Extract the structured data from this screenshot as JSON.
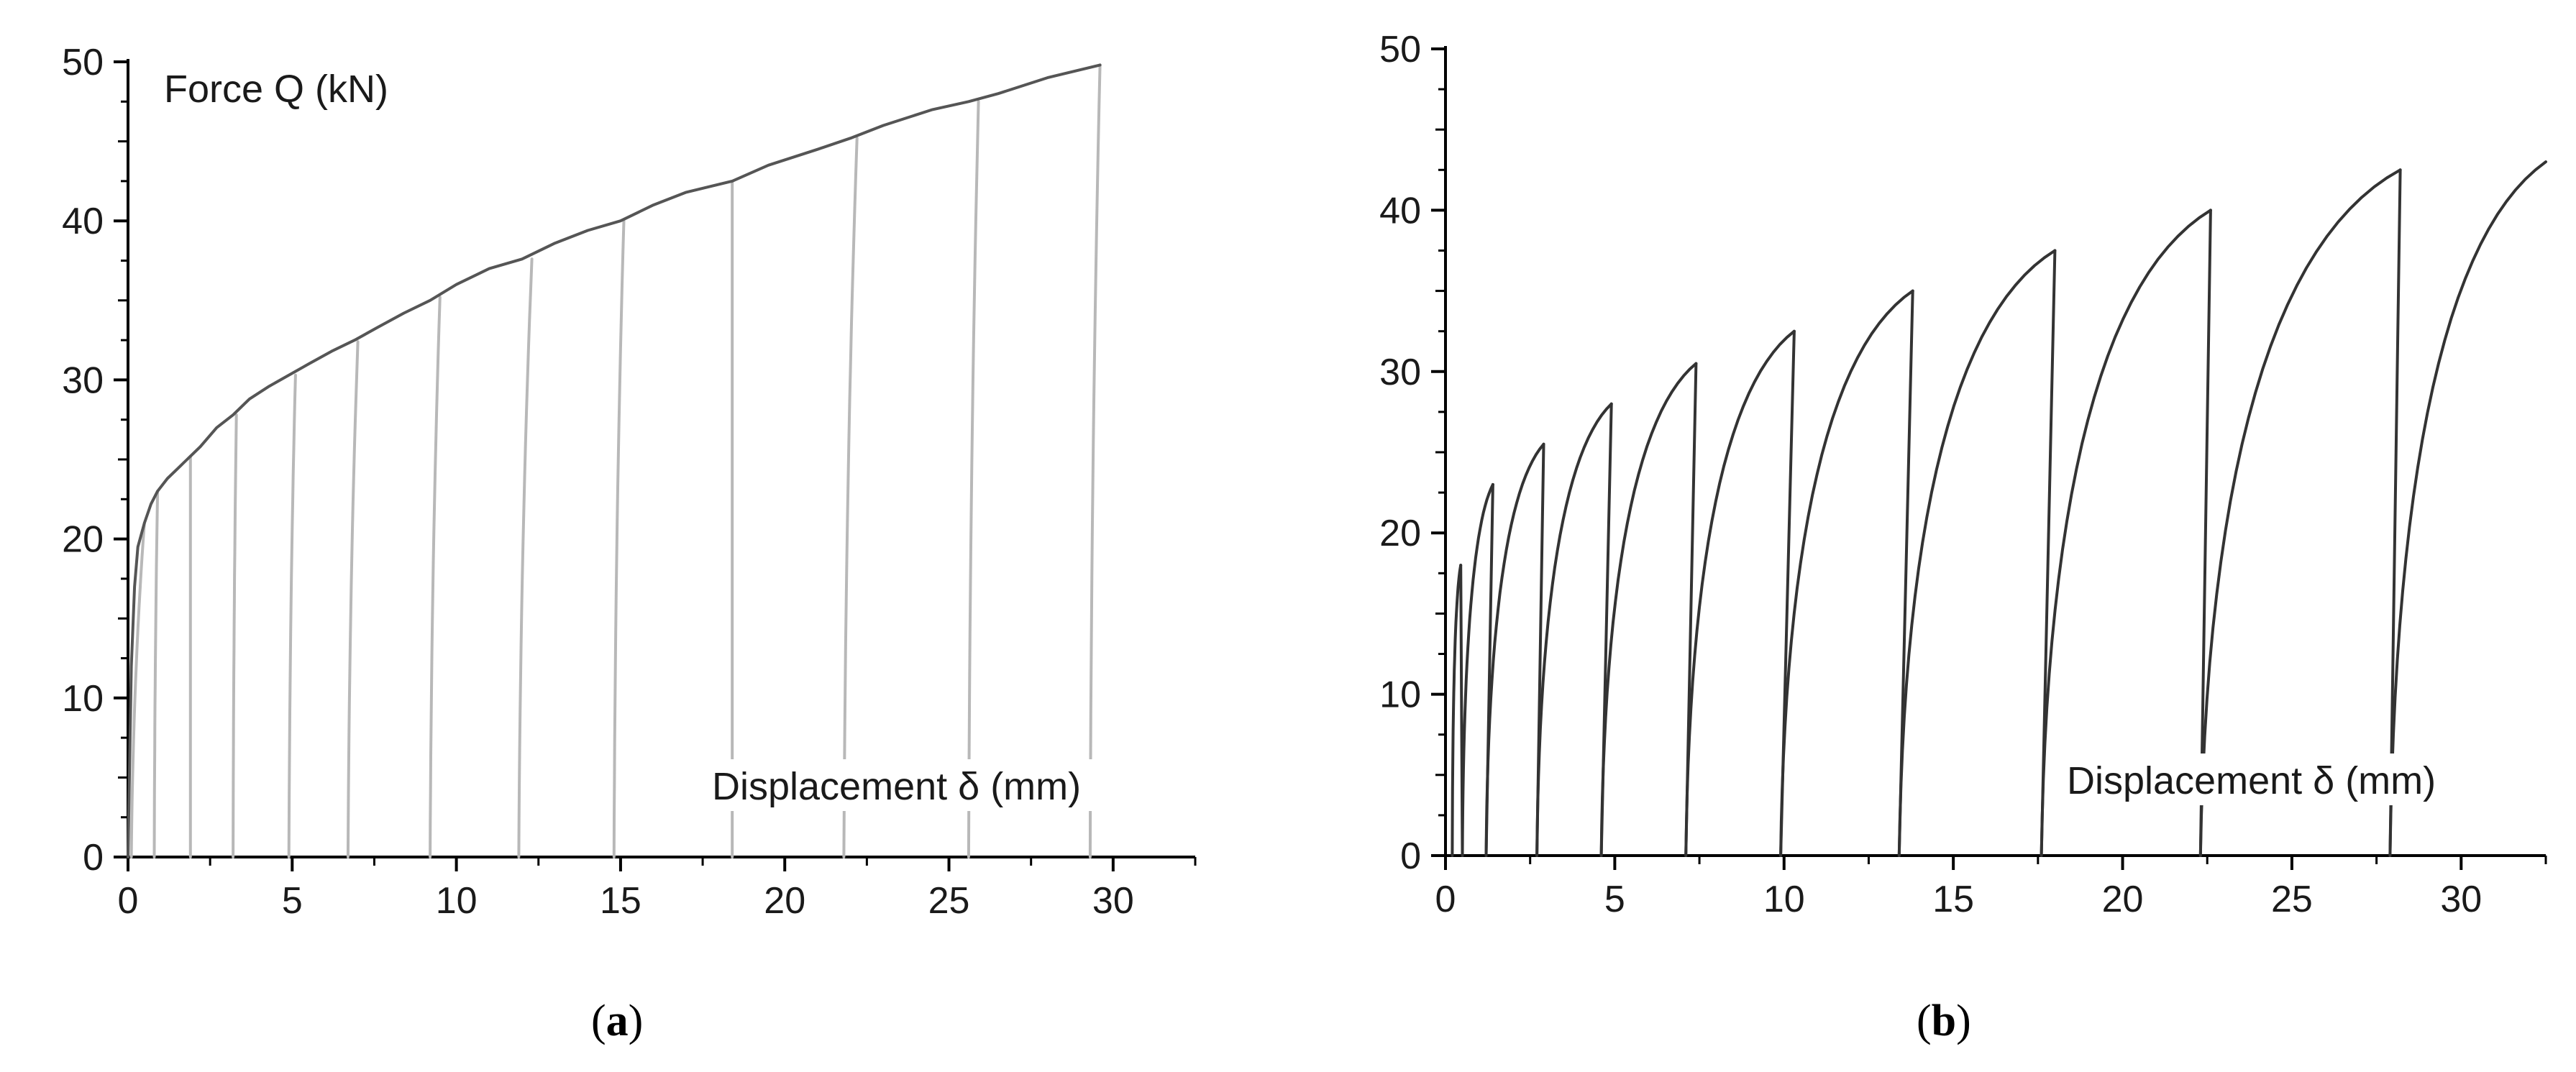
{
  "chart_data": [
    {
      "type": "line",
      "panel": "a",
      "caption_letter": "a",
      "title": "",
      "ylabel": "Force Q (kN)",
      "xlabel": "Displacement δ (mm)",
      "xlim": [
        0,
        32.5
      ],
      "ylim": [
        0,
        50
      ],
      "x_ticks": [
        0,
        5,
        10,
        15,
        20,
        25,
        30
      ],
      "y_ticks": [
        0,
        10,
        20,
        30,
        40,
        50
      ],
      "grid": false,
      "legend": "none",
      "colors": {
        "envelope": "#555555",
        "unloading": "#b8b8b8"
      },
      "series": [
        {
          "role": "envelope",
          "x": [
            0.0,
            0.1,
            0.2,
            0.3,
            0.5,
            0.7,
            0.9,
            1.2,
            1.5,
            1.8,
            2.2,
            2.7,
            3.2,
            3.7,
            4.3,
            4.9,
            5.5,
            6.2,
            6.9,
            7.6,
            8.4,
            9.2,
            10.0,
            11.0,
            12.0,
            13.0,
            14.0,
            15.0,
            16.0,
            17.0,
            18.4,
            19.5,
            21.0,
            22.0,
            23.0,
            24.5,
            25.6,
            26.5,
            28.0,
            29.6
          ],
          "y": [
            0.0,
            12.0,
            17.0,
            19.5,
            21.0,
            22.2,
            23.0,
            23.8,
            24.4,
            25.0,
            25.8,
            27.0,
            27.8,
            28.8,
            29.6,
            30.3,
            31.0,
            31.8,
            32.5,
            33.3,
            34.2,
            35.0,
            36.0,
            37.0,
            37.6,
            38.6,
            39.4,
            40.0,
            41.0,
            41.8,
            42.5,
            43.5,
            44.5,
            45.2,
            46.0,
            47.0,
            47.5,
            48.0,
            49.0,
            49.8
          ]
        },
        {
          "role": "unloading",
          "cycles": [
            {
              "peak": [
                0.5,
                21.0
              ],
              "end": [
                0.1,
                0.0
              ]
            },
            {
              "peak": [
                0.9,
                23.0
              ],
              "end": [
                0.8,
                0.0
              ]
            },
            {
              "peak": [
                1.9,
                25.2
              ],
              "end": [
                1.9,
                0.0
              ]
            },
            {
              "peak": [
                3.3,
                27.8
              ],
              "end": [
                3.2,
                0.0
              ]
            },
            {
              "peak": [
                5.1,
                30.3
              ],
              "end": [
                4.9,
                0.0
              ]
            },
            {
              "peak": [
                7.0,
                32.4
              ],
              "end": [
                6.7,
                0.0
              ]
            },
            {
              "peak": [
                9.5,
                35.2
              ],
              "end": [
                9.2,
                0.0
              ]
            },
            {
              "peak": [
                12.3,
                37.6
              ],
              "end": [
                11.9,
                0.0
              ]
            },
            {
              "peak": [
                15.1,
                40.0
              ],
              "end": [
                14.8,
                0.0
              ]
            },
            {
              "peak": [
                18.4,
                42.5
              ],
              "end": [
                18.4,
                0.0
              ]
            },
            {
              "peak": [
                22.2,
                45.2
              ],
              "end": [
                21.8,
                0.0
              ]
            },
            {
              "peak": [
                25.9,
                47.5
              ],
              "end": [
                25.6,
                0.0
              ]
            },
            {
              "peak": [
                29.6,
                49.8
              ],
              "end": [
                29.3,
                0.0
              ]
            }
          ]
        }
      ]
    },
    {
      "type": "line",
      "panel": "b",
      "caption_letter": "b",
      "title": "",
      "ylabel": "",
      "xlabel": "Displacement δ (mm)",
      "xlim": [
        0,
        32.5
      ],
      "ylim": [
        0,
        50
      ],
      "x_ticks": [
        0,
        5,
        10,
        15,
        20,
        25,
        30
      ],
      "y_ticks": [
        0,
        10,
        20,
        30,
        40,
        50
      ],
      "grid": false,
      "legend": "none",
      "colors": {
        "loading": "#333333"
      },
      "series": [
        {
          "role": "cycles",
          "cycles": [
            {
              "start": 0.2,
              "peak": [
                0.45,
                18.0
              ],
              "end": 0.5
            },
            {
              "start": 0.5,
              "peak": [
                1.4,
                23.0
              ],
              "end": 1.2
            },
            {
              "start": 1.2,
              "peak": [
                2.9,
                25.5
              ],
              "end": 2.7
            },
            {
              "start": 2.7,
              "peak": [
                4.9,
                28.0
              ],
              "end": 4.6
            },
            {
              "start": 4.6,
              "peak": [
                7.4,
                30.5
              ],
              "end": 7.1
            },
            {
              "start": 7.1,
              "peak": [
                10.3,
                32.5
              ],
              "end": 9.9
            },
            {
              "start": 9.9,
              "peak": [
                13.8,
                35.0
              ],
              "end": 13.4
            },
            {
              "start": 13.4,
              "peak": [
                18.0,
                37.5
              ],
              "end": 17.6
            },
            {
              "start": 17.6,
              "peak": [
                22.6,
                40.0
              ],
              "end": 22.3
            },
            {
              "start": 22.3,
              "peak": [
                28.2,
                42.5
              ],
              "end": 27.9
            },
            {
              "start": 27.9,
              "peak": [
                32.5,
                43.0
              ],
              "end": null
            }
          ]
        }
      ]
    }
  ]
}
